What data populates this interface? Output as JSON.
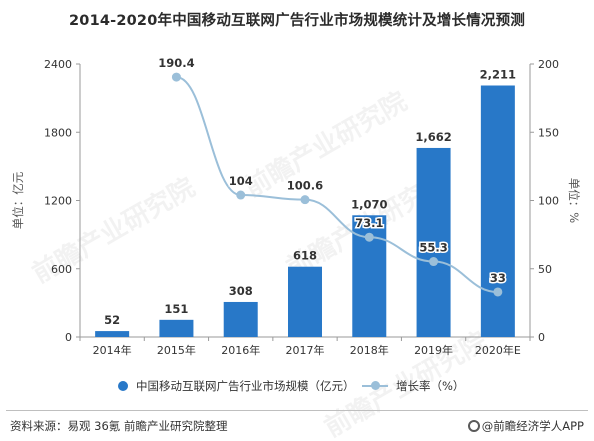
{
  "title": "2014-2020年中国移动互联网广告行业市场规模统计及增长情况预测",
  "source": "资料来源：易观 36氪 前瞻产业研究院整理",
  "brand": "@前瞻经济学人APP",
  "watermark_text": "前瞻产业研究院",
  "colors": {
    "bar": "#2878c8",
    "line": "#9bbfd9",
    "axis": "#9a9a9a",
    "text": "#333333"
  },
  "chart_data": {
    "type": "bar",
    "categories": [
      "2014年",
      "2015年",
      "2016年",
      "2017年",
      "2018年",
      "2019年",
      "2020年E"
    ],
    "series": [
      {
        "name": "中国移动互联网广告行业市场规模（亿元）",
        "type": "bar",
        "axis": "left",
        "values": [
          52,
          151,
          308,
          618,
          1070,
          1662,
          2211
        ],
        "labels": [
          "52",
          "151",
          "308",
          "618",
          "1,070",
          "1,662",
          "2,211"
        ]
      },
      {
        "name": "增长率（%）",
        "type": "line",
        "axis": "right",
        "values": [
          null,
          190.4,
          104,
          100.6,
          73.1,
          55.3,
          33
        ],
        "labels": [
          "",
          "190.4",
          "104",
          "100.6",
          "73.1",
          "55.3",
          "33"
        ]
      }
    ],
    "ylabel": "单位：亿元",
    "y2label": "单位：%",
    "ylim": [
      0,
      2400
    ],
    "y2lim": [
      0,
      200
    ],
    "yticks": [
      0,
      600,
      1200,
      1800,
      2400
    ],
    "y2ticks": [
      0,
      50,
      100,
      150,
      200
    ],
    "legend_position": "bottom"
  }
}
